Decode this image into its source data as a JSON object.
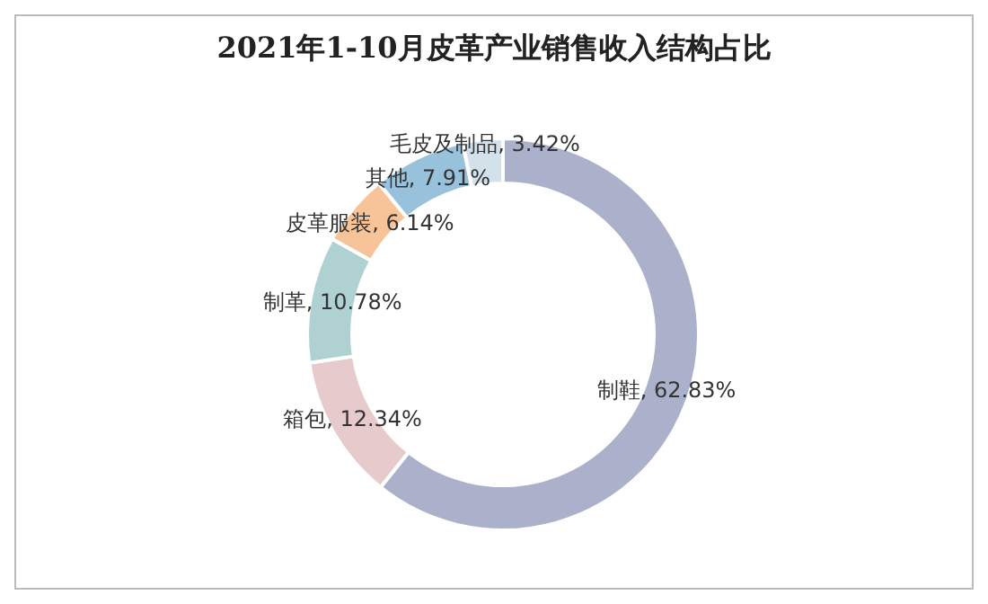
{
  "chart_data": {
    "type": "donut",
    "title": "2021年1-10月皮革产业销售收入结构占比",
    "categories": [
      "制鞋",
      "箱包",
      "制革",
      "皮革服装",
      "其他",
      "毛皮及制品"
    ],
    "values": [
      62.83,
      12.34,
      10.78,
      6.14,
      7.91,
      3.42
    ],
    "value_labels": [
      "62.83%",
      "12.34%",
      "10.78%",
      "6.14%",
      "7.91%",
      "3.42%"
    ],
    "colors": [
      "#abb1ca",
      "#e6cacc",
      "#b0d1d2",
      "#f7c49a",
      "#98c1dc",
      "#d3e2ea"
    ],
    "legend": false
  }
}
